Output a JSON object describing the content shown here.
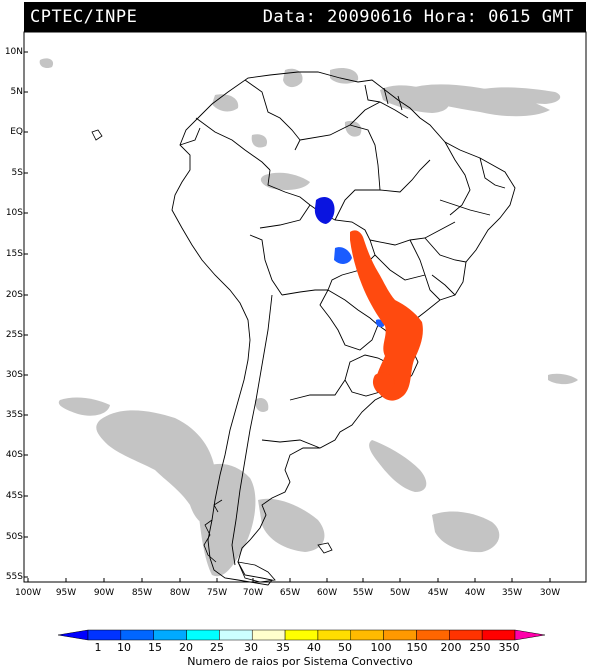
{
  "header": {
    "left": "CPTEC/INPE",
    "right": "Data: 20090616 Hora: 0615 GMT"
  },
  "axes": {
    "lat_labels": [
      "10N",
      "5N",
      "EQ",
      "5S",
      "10S",
      "15S",
      "20S",
      "25S",
      "30S",
      "35S",
      "40S",
      "45S",
      "50S",
      "55S"
    ],
    "lon_labels": [
      "100W",
      "95W",
      "90W",
      "85W",
      "80W",
      "75W",
      "70W",
      "65W",
      "60W",
      "55W",
      "50W",
      "45W",
      "40W",
      "35W",
      "30W"
    ]
  },
  "legend": {
    "values": [
      "1",
      "10",
      "15",
      "20",
      "25",
      "30",
      "35",
      "40",
      "50",
      "100",
      "150",
      "200",
      "250",
      "350"
    ],
    "colors": [
      "#0000ff",
      "#0033ff",
      "#0066ff",
      "#00aaff",
      "#00ffff",
      "#ccffff",
      "#ffffcc",
      "#ffff00",
      "#ffdd00",
      "#ffbb00",
      "#ff9900",
      "#ff6600",
      "#ff3300",
      "#ff0000",
      "#ff00aa"
    ],
    "title": "Numero de raios por Sistema Convectivo"
  },
  "colors": {
    "cloud": "#c4c4c4",
    "border": "#000000",
    "storm_blue": "#0a14e0",
    "storm_blue_light": "#1a5cff",
    "storm_orange": "#ff4a0f"
  }
}
